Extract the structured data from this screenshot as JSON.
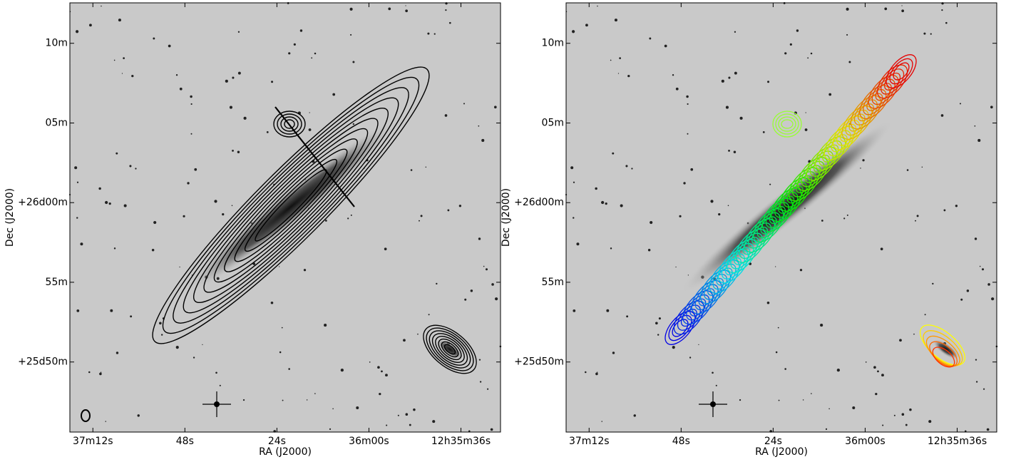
{
  "chart_data": [
    {
      "type": "image",
      "xlabel": "RA (J2000)",
      "ylabel": "Dec (J2000)",
      "xlim": [
        189.325,
        188.857
      ],
      "ylim": [
        25.76,
        26.209
      ],
      "xticks": [
        {
          "value": 189.3,
          "label": "37m12s"
        },
        {
          "value": 189.2,
          "label": "48s"
        },
        {
          "value": 189.1,
          "label": "24s"
        },
        {
          "value": 189.0,
          "label": "36m00s"
        },
        {
          "value": 188.9,
          "label": "12h35m36s"
        }
      ],
      "yticks": [
        {
          "value": 26.1667,
          "label": "10m"
        },
        {
          "value": 26.0833,
          "label": "05m"
        },
        {
          "value": 26.0,
          "label": "+26d00m"
        },
        {
          "value": 25.9167,
          "label": "55m"
        },
        {
          "value": 25.8333,
          "label": "+25d50m"
        }
      ],
      "contour_color": "black"
    },
    {
      "type": "image",
      "xlabel": "RA (J2000)",
      "ylabel": "Dec (J2000)",
      "xlim": [
        189.325,
        188.857
      ],
      "ylim": [
        25.76,
        26.209
      ],
      "xticks": [
        {
          "value": 189.3,
          "label": "37m12s"
        },
        {
          "value": 189.2,
          "label": "48s"
        },
        {
          "value": 189.1,
          "label": "24s"
        },
        {
          "value": 189.0,
          "label": "36m00s"
        },
        {
          "value": 188.9,
          "label": "12h35m36s"
        }
      ],
      "yticks": [
        {
          "value": 26.1667,
          "label": "10m"
        },
        {
          "value": 26.0833,
          "label": "05m"
        },
        {
          "value": 26.0,
          "label": "+26d00m"
        },
        {
          "value": 25.9167,
          "label": "55m"
        },
        {
          "value": 25.8333,
          "label": "+25d50m"
        }
      ],
      "contour_color": "rainbow"
    }
  ]
}
